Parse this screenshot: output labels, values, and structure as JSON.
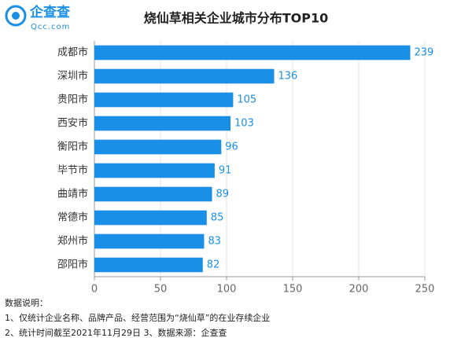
{
  "logo": {
    "name": "企查查",
    "domain": "Qcc.com"
  },
  "chart_data": {
    "type": "bar",
    "orientation": "horizontal",
    "title": "烧仙草相关企业城市分布TOP10",
    "categories": [
      "成都市",
      "深圳市",
      "贵阳市",
      "西安市",
      "衡阳市",
      "毕节市",
      "曲靖市",
      "常德市",
      "郑州市",
      "邵阳市"
    ],
    "values": [
      239,
      136,
      105,
      103,
      96,
      91,
      89,
      85,
      83,
      82
    ],
    "color": "#1a8fe6",
    "xlim": [
      0,
      250
    ],
    "xticks": [
      0,
      50,
      100,
      150,
      200,
      250
    ],
    "grid": true
  },
  "notes": [
    "数据说明：",
    "1、仅统计企业名称、品牌产品、经营范围为“烧仙草”的在业存续企业",
    "2、统计时间截至2021年11月29日  3、数据来源：企查查"
  ]
}
